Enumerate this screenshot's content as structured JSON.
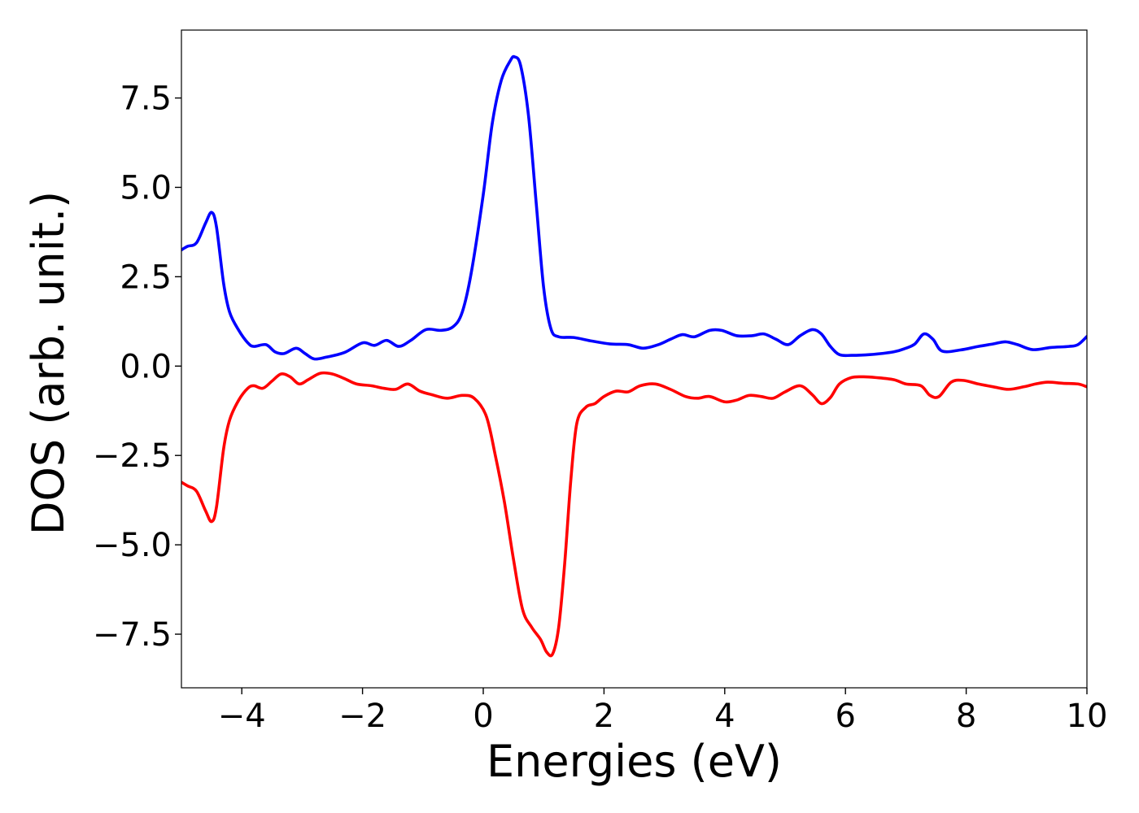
{
  "chart_data": {
    "type": "line",
    "title": "",
    "xlabel": "Energies (eV)",
    "ylabel": "DOS (arb. unit.)",
    "xlim": [
      -5,
      10
    ],
    "ylim": [
      -9.0,
      9.4
    ],
    "grid": false,
    "x_ticks": [
      -4,
      -2,
      0,
      2,
      4,
      6,
      8,
      10
    ],
    "x_tick_labels": [
      "−4",
      "−2",
      "0",
      "2",
      "4",
      "6",
      "8",
      "10"
    ],
    "y_ticks": [
      7.5,
      5.0,
      2.5,
      0.0,
      -2.5,
      -5.0,
      -7.5
    ],
    "y_tick_labels": [
      "7.5",
      "5.0",
      "2.5",
      "0.0",
      "−2.5",
      "−5.0",
      "−7.5"
    ],
    "series": [
      {
        "color": "#0000ff",
        "points": [
          [
            -5.0,
            3.25
          ],
          [
            -4.9,
            3.35
          ],
          [
            -4.75,
            3.45
          ],
          [
            -4.6,
            4.0
          ],
          [
            -4.5,
            4.3
          ],
          [
            -4.42,
            3.9
          ],
          [
            -4.3,
            2.3
          ],
          [
            -4.2,
            1.5
          ],
          [
            -4.05,
            1.0
          ],
          [
            -3.9,
            0.65
          ],
          [
            -3.8,
            0.55
          ],
          [
            -3.6,
            0.6
          ],
          [
            -3.45,
            0.4
          ],
          [
            -3.3,
            0.35
          ],
          [
            -3.1,
            0.5
          ],
          [
            -2.95,
            0.35
          ],
          [
            -2.8,
            0.2
          ],
          [
            -2.6,
            0.25
          ],
          [
            -2.3,
            0.38
          ],
          [
            -2.0,
            0.65
          ],
          [
            -1.8,
            0.58
          ],
          [
            -1.6,
            0.72
          ],
          [
            -1.4,
            0.55
          ],
          [
            -1.2,
            0.72
          ],
          [
            -0.95,
            1.02
          ],
          [
            -0.7,
            1.0
          ],
          [
            -0.5,
            1.1
          ],
          [
            -0.35,
            1.5
          ],
          [
            -0.2,
            2.6
          ],
          [
            0.0,
            4.8
          ],
          [
            0.15,
            6.8
          ],
          [
            0.3,
            8.0
          ],
          [
            0.45,
            8.55
          ],
          [
            0.52,
            8.65
          ],
          [
            0.62,
            8.4
          ],
          [
            0.75,
            7.0
          ],
          [
            0.88,
            4.5
          ],
          [
            1.0,
            2.2
          ],
          [
            1.12,
            1.05
          ],
          [
            1.25,
            0.82
          ],
          [
            1.5,
            0.8
          ],
          [
            1.8,
            0.7
          ],
          [
            2.1,
            0.62
          ],
          [
            2.4,
            0.6
          ],
          [
            2.65,
            0.5
          ],
          [
            2.9,
            0.6
          ],
          [
            3.1,
            0.75
          ],
          [
            3.3,
            0.88
          ],
          [
            3.5,
            0.82
          ],
          [
            3.75,
            1.0
          ],
          [
            3.95,
            1.0
          ],
          [
            4.2,
            0.85
          ],
          [
            4.45,
            0.85
          ],
          [
            4.65,
            0.9
          ],
          [
            4.85,
            0.75
          ],
          [
            5.05,
            0.6
          ],
          [
            5.25,
            0.85
          ],
          [
            5.45,
            1.02
          ],
          [
            5.6,
            0.9
          ],
          [
            5.75,
            0.55
          ],
          [
            5.9,
            0.32
          ],
          [
            6.1,
            0.3
          ],
          [
            6.4,
            0.32
          ],
          [
            6.8,
            0.4
          ],
          [
            7.0,
            0.5
          ],
          [
            7.15,
            0.62
          ],
          [
            7.3,
            0.9
          ],
          [
            7.45,
            0.75
          ],
          [
            7.6,
            0.42
          ],
          [
            7.9,
            0.45
          ],
          [
            8.2,
            0.55
          ],
          [
            8.45,
            0.62
          ],
          [
            8.65,
            0.68
          ],
          [
            8.85,
            0.6
          ],
          [
            9.1,
            0.46
          ],
          [
            9.4,
            0.52
          ],
          [
            9.7,
            0.55
          ],
          [
            9.85,
            0.6
          ],
          [
            10.0,
            0.83
          ]
        ]
      },
      {
        "color": "#ff0000",
        "points": [
          [
            -5.0,
            -3.25
          ],
          [
            -4.9,
            -3.35
          ],
          [
            -4.75,
            -3.5
          ],
          [
            -4.6,
            -4.05
          ],
          [
            -4.5,
            -4.35
          ],
          [
            -4.42,
            -3.95
          ],
          [
            -4.3,
            -2.3
          ],
          [
            -4.2,
            -1.5
          ],
          [
            -4.05,
            -0.95
          ],
          [
            -3.9,
            -0.62
          ],
          [
            -3.8,
            -0.55
          ],
          [
            -3.65,
            -0.62
          ],
          [
            -3.5,
            -0.42
          ],
          [
            -3.35,
            -0.22
          ],
          [
            -3.2,
            -0.3
          ],
          [
            -3.05,
            -0.5
          ],
          [
            -2.9,
            -0.38
          ],
          [
            -2.7,
            -0.2
          ],
          [
            -2.5,
            -0.22
          ],
          [
            -2.3,
            -0.35
          ],
          [
            -2.1,
            -0.5
          ],
          [
            -1.85,
            -0.55
          ],
          [
            -1.65,
            -0.62
          ],
          [
            -1.45,
            -0.65
          ],
          [
            -1.25,
            -0.5
          ],
          [
            -1.05,
            -0.7
          ],
          [
            -0.85,
            -0.8
          ],
          [
            -0.6,
            -0.9
          ],
          [
            -0.35,
            -0.82
          ],
          [
            -0.15,
            -0.9
          ],
          [
            0.05,
            -1.4
          ],
          [
            0.2,
            -2.5
          ],
          [
            0.35,
            -3.8
          ],
          [
            0.5,
            -5.4
          ],
          [
            0.65,
            -6.8
          ],
          [
            0.8,
            -7.3
          ],
          [
            0.95,
            -7.65
          ],
          [
            1.05,
            -8.0
          ],
          [
            1.15,
            -8.05
          ],
          [
            1.25,
            -7.3
          ],
          [
            1.35,
            -5.5
          ],
          [
            1.45,
            -3.2
          ],
          [
            1.55,
            -1.6
          ],
          [
            1.7,
            -1.15
          ],
          [
            1.85,
            -1.05
          ],
          [
            2.0,
            -0.85
          ],
          [
            2.2,
            -0.7
          ],
          [
            2.4,
            -0.72
          ],
          [
            2.6,
            -0.55
          ],
          [
            2.85,
            -0.5
          ],
          [
            3.1,
            -0.65
          ],
          [
            3.35,
            -0.85
          ],
          [
            3.55,
            -0.9
          ],
          [
            3.75,
            -0.85
          ],
          [
            4.0,
            -1.0
          ],
          [
            4.2,
            -0.95
          ],
          [
            4.4,
            -0.82
          ],
          [
            4.6,
            -0.85
          ],
          [
            4.8,
            -0.9
          ],
          [
            5.0,
            -0.72
          ],
          [
            5.25,
            -0.55
          ],
          [
            5.45,
            -0.8
          ],
          [
            5.6,
            -1.05
          ],
          [
            5.75,
            -0.88
          ],
          [
            5.9,
            -0.5
          ],
          [
            6.1,
            -0.32
          ],
          [
            6.3,
            -0.3
          ],
          [
            6.5,
            -0.32
          ],
          [
            6.8,
            -0.38
          ],
          [
            7.0,
            -0.5
          ],
          [
            7.25,
            -0.55
          ],
          [
            7.4,
            -0.82
          ],
          [
            7.55,
            -0.85
          ],
          [
            7.75,
            -0.45
          ],
          [
            7.95,
            -0.4
          ],
          [
            8.2,
            -0.5
          ],
          [
            8.45,
            -0.58
          ],
          [
            8.7,
            -0.65
          ],
          [
            8.95,
            -0.58
          ],
          [
            9.15,
            -0.5
          ],
          [
            9.35,
            -0.45
          ],
          [
            9.6,
            -0.48
          ],
          [
            9.85,
            -0.5
          ],
          [
            10.0,
            -0.58
          ]
        ]
      }
    ]
  }
}
